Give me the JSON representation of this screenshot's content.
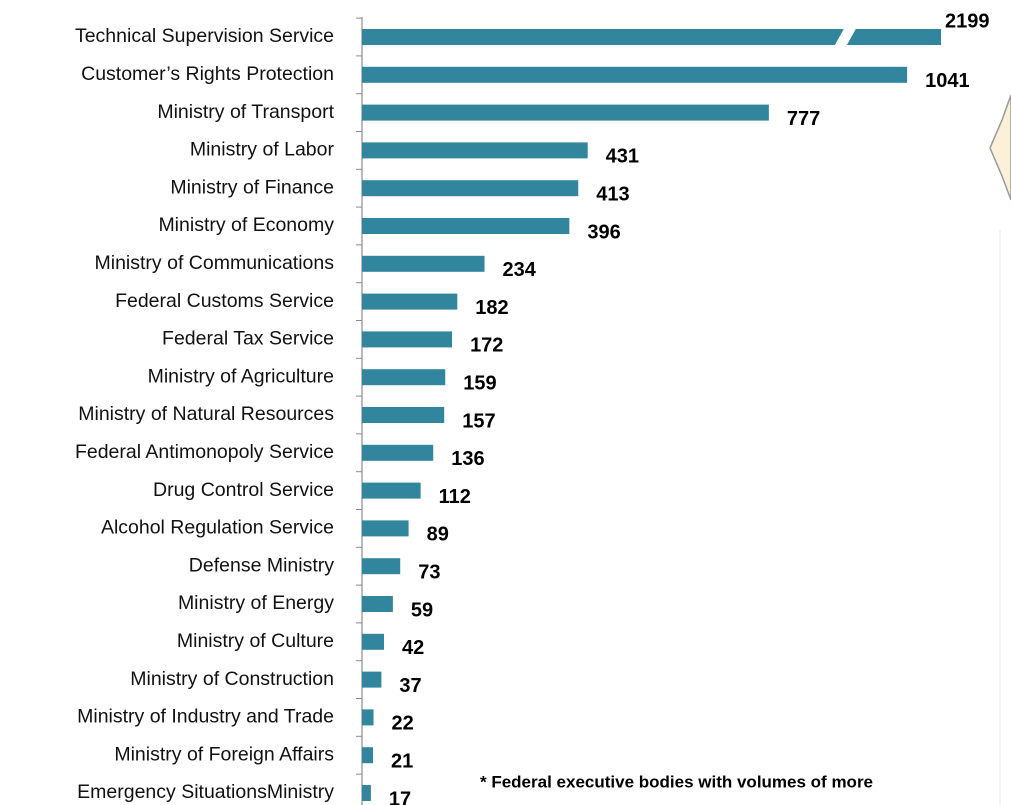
{
  "chart_data": {
    "type": "hbar",
    "categories": [
      "Technical Supervision Service",
      "Customer’s Rights Protection",
      "Ministry of Transport",
      "Ministry of Labor",
      "Ministry of Finance",
      "Ministry of Economy",
      "Ministry of Communications",
      "Federal Customs Service",
      "Federal Tax Service",
      "Ministry of Agriculture",
      "Ministry of Natural Resources",
      "Federal Antimonopoly Service",
      "Drug Control Service",
      "Alcohol Regulation Service",
      "Defense Ministry",
      "Ministry of Energy",
      "Ministry of Culture",
      "Ministry of Construction",
      "Ministry of Industry and Trade",
      "Ministry of Foreign Affairs",
      "Emergency SituationsMinistry"
    ],
    "values": [
      2199,
      1041,
      777,
      431,
      413,
      396,
      234,
      182,
      172,
      159,
      157,
      136,
      112,
      89,
      73,
      59,
      42,
      37,
      22,
      21,
      17
    ],
    "color": "#31859c",
    "xlim": [
      0,
      1100
    ],
    "axis_break": true,
    "footnote": "* Federal executive bodies with volumes of more"
  }
}
